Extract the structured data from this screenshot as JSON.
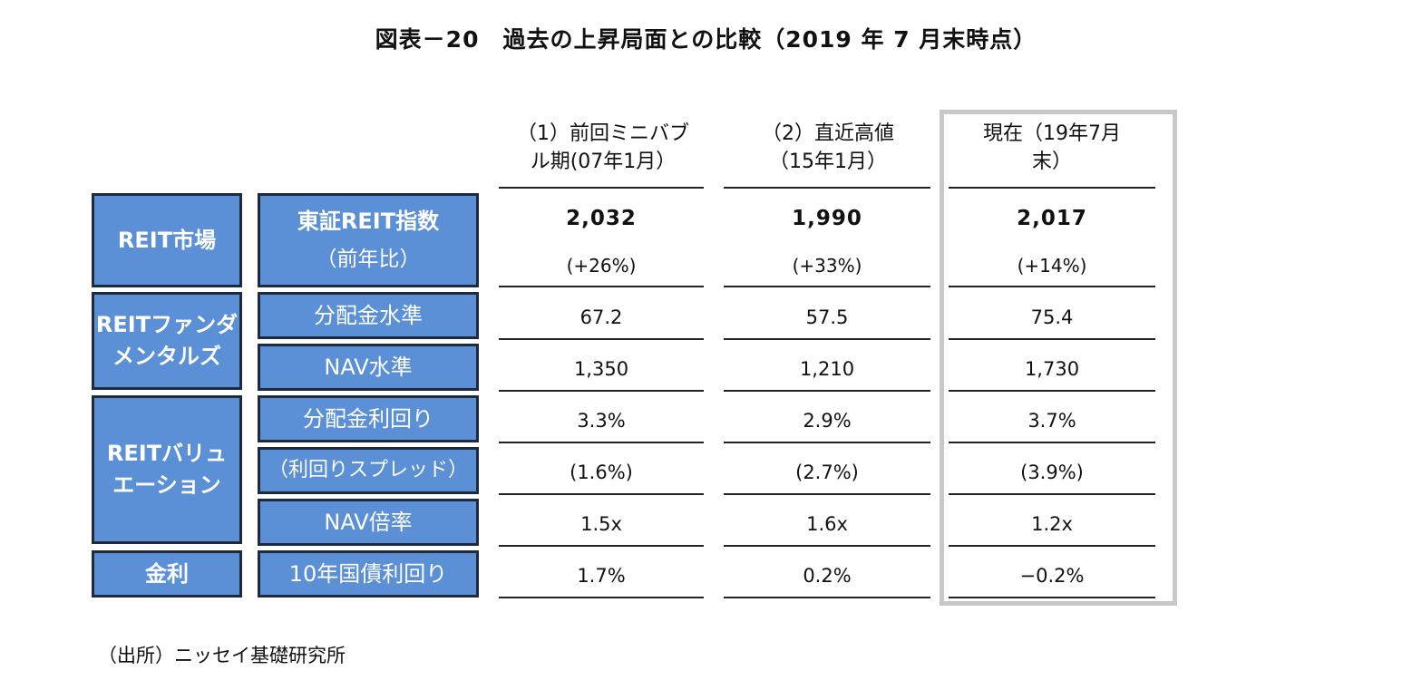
{
  "chart_data": {
    "type": "table",
    "title": "図表－20　過去の上昇局面との比較（2019 年 7 月末時点）",
    "columns": [
      {
        "lines": [
          "（1）前回ミニバブ",
          "ル期(07年1月）"
        ]
      },
      {
        "lines": [
          "（2）直近高値",
          "（15年1月）"
        ]
      },
      {
        "lines": [
          "現在（19年7月",
          "末）"
        ]
      }
    ],
    "groups": [
      {
        "lines": [
          "REIT市場"
        ]
      },
      {
        "lines": [
          "REITファンダ",
          "メンタルズ"
        ]
      },
      {
        "lines": [
          "REITバリュ",
          "エーション"
        ]
      },
      {
        "lines": [
          "金利"
        ]
      }
    ],
    "metrics": [
      {
        "label": "東証REIT指数",
        "sublabel": "（前年比）",
        "values": [
          "2,032",
          "1,990",
          "2,017"
        ],
        "subvalues": [
          "(+26%)",
          "(+33%)",
          "(+14%)"
        ]
      },
      {
        "label": "分配金水準",
        "values": [
          "67.2",
          "57.5",
          "75.4"
        ]
      },
      {
        "label": "NAV水準",
        "values": [
          "1,350",
          "1,210",
          "1,730"
        ]
      },
      {
        "label": "分配金利回り",
        "values": [
          "3.3%",
          "2.9%",
          "3.7%"
        ]
      },
      {
        "label": "（利回りスプレッド）",
        "values": [
          "(1.6%)",
          "(2.7%)",
          "(3.9%)"
        ]
      },
      {
        "label": "NAV倍率",
        "values": [
          "1.5x",
          "1.6x",
          "1.2x"
        ]
      },
      {
        "label": "10年国債利回り",
        "values": [
          "1.7%",
          "0.2%",
          "−0.2%"
        ]
      }
    ],
    "highlighted_column": "現在（19年7月末）"
  },
  "source": "（出所）ニッセイ基礎研究所",
  "colors": {
    "header_fill": "#5b8fd6",
    "header_border": "#1f2b3c",
    "highlight_border": "#c8c8c8"
  }
}
